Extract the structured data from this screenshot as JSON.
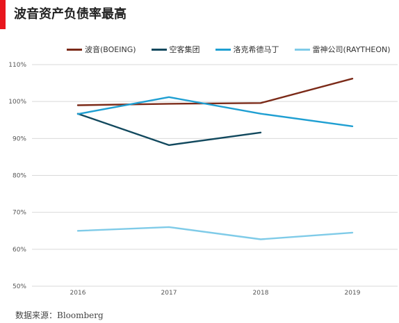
{
  "title": "波音资产负债率最高",
  "source": "数据来源：Bloomberg",
  "colors": {
    "accent": "#e8161d"
  },
  "chart_data": {
    "type": "line",
    "title": "波音资产负债率最高",
    "x": [
      "2016",
      "2017",
      "2018",
      "2019"
    ],
    "ylim": [
      50,
      110
    ],
    "yticks": [
      "50%",
      "60%",
      "70%",
      "80%",
      "90%",
      "100%",
      "110%"
    ],
    "ytick_values": [
      50,
      60,
      70,
      80,
      90,
      100,
      110
    ],
    "grid": true,
    "legend_position": "top",
    "series": [
      {
        "name": "波音(BOEING)",
        "color": "#7b2a18",
        "values": [
          99.0,
          99.4,
          99.6,
          106.2
        ]
      },
      {
        "name": "空客集团",
        "color": "#12495e",
        "values": [
          96.7,
          88.2,
          91.6,
          null
        ]
      },
      {
        "name": "洛克希德马丁",
        "color": "#1f9fd2",
        "values": [
          96.6,
          101.2,
          96.7,
          93.3
        ]
      },
      {
        "name": "雷神公司(RAYTHEON)",
        "color": "#7fcbe8",
        "values": [
          65.0,
          66.0,
          62.7,
          64.5
        ]
      }
    ]
  }
}
